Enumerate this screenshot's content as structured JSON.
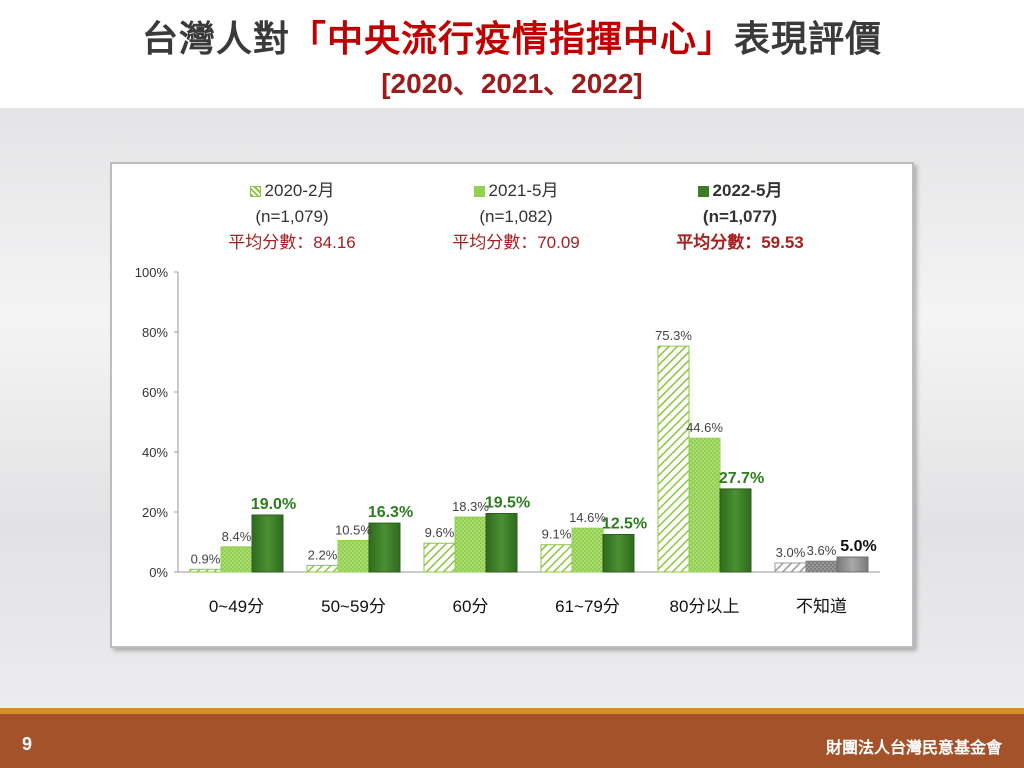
{
  "slide": {
    "title_prefix": "台灣人對",
    "title_highlight": "「中央流行疫情指揮中心」",
    "title_suffix": "表現評價",
    "subtitle": "[2020、2021、2022]",
    "page_number": "9",
    "organization": "財團法人台灣民意基金會"
  },
  "legend": [
    {
      "label": "2020-2月",
      "n": "(n=1,079)",
      "avg": "平均分數：84.16",
      "bold": false
    },
    {
      "label": "2021-5月",
      "n": "(n=1,082)",
      "avg": "平均分數：70.09",
      "bold": false
    },
    {
      "label": "2022-5月",
      "n": "(n=1,077)",
      "avg": "平均分數：59.53",
      "bold": true
    }
  ],
  "chart_data": {
    "type": "bar",
    "categories": [
      "0~49分",
      "50~59分",
      "60分",
      "61~79分",
      "80分以上",
      "不知道"
    ],
    "series": [
      {
        "name": "2020-2月",
        "values": [
          0.9,
          2.2,
          9.6,
          9.1,
          75.3,
          3.0
        ],
        "labels": [
          "0.9%",
          "2.2%",
          "9.6%",
          "9.1%",
          "75.3%",
          "3.0%"
        ]
      },
      {
        "name": "2021-5月",
        "values": [
          8.4,
          10.5,
          18.3,
          14.6,
          44.6,
          3.6
        ],
        "labels": [
          "8.4%",
          "10.5%",
          "18.3%",
          "14.6%",
          "44.6%",
          "3.6%"
        ]
      },
      {
        "name": "2022-5月",
        "values": [
          19.0,
          16.3,
          19.5,
          12.5,
          27.7,
          5.0
        ],
        "labels": [
          "19.0%",
          "16.3%",
          "19.5%",
          "12.5%",
          "27.7%",
          "5.0%"
        ]
      }
    ],
    "yticks": [
      "0%",
      "20%",
      "40%",
      "60%",
      "80%",
      "100%"
    ],
    "ylim": [
      0,
      100
    ],
    "colors": {
      "hatch": "#8cc63f",
      "dotted": "#92d050",
      "dark": "#3e7d28",
      "gray_hatch": "#9a9a9a",
      "gray_dot": "#7f7f7f",
      "gray_dark": "#8a8a8a",
      "label_green": "#2e7d1f"
    }
  }
}
